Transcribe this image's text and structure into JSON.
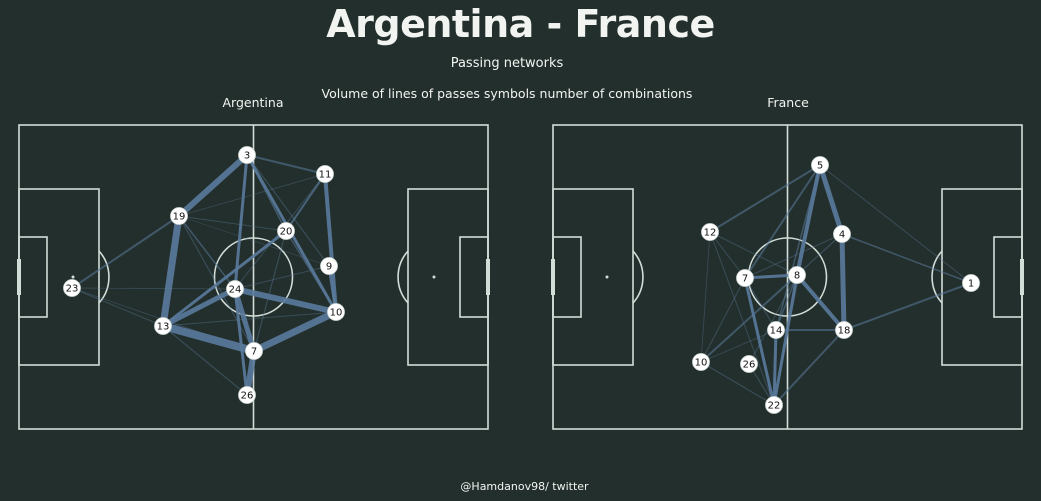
{
  "title": "Argentina - France",
  "subtitle": "Passing networks",
  "caption": "Volume of lines of passes symbols number of combinations",
  "footer": "@Hamdanov98/ twitter",
  "colors": {
    "background": "#232f2c",
    "pitch_lines": "#d3ddd8",
    "pass_lines": "#5a7a9c",
    "node_fill": "#ffffff",
    "text": "#f2f4f1"
  },
  "teams": [
    {
      "name": "Argentina",
      "players": [
        "3",
        "11",
        "19",
        "20",
        "9",
        "24",
        "23",
        "10",
        "13",
        "7",
        "26"
      ]
    },
    {
      "name": "France",
      "players": [
        "5",
        "4",
        "12",
        "8",
        "7",
        "1",
        "14",
        "18",
        "10",
        "26",
        "22"
      ]
    }
  ]
}
